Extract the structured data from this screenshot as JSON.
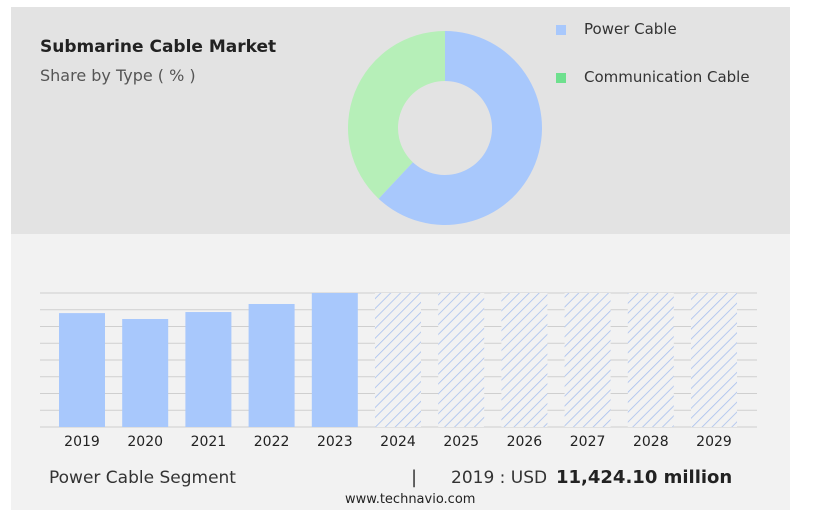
{
  "title": "Submarine Cable Market",
  "subtitle": "Share by Type ( % )",
  "footer": {
    "segment": "Power Cable Segment",
    "separator": "|",
    "year_label": "2019 : USD",
    "value": "11,424.10 million",
    "source": "www.technavio.com"
  },
  "colors": {
    "power": "#a8c8fc",
    "communication": "#b6efb8",
    "communication_legend": "#6ee08e",
    "hatch": "#a8c0ee"
  },
  "chart_data": [
    {
      "type": "pie",
      "title": "Submarine Cable Market",
      "subtitle": "Share by Type ( % )",
      "donut": true,
      "legend_placement": "top-right",
      "slices": [
        {
          "label": "Power Cable",
          "value": 62
        },
        {
          "label": "Communication Cable",
          "value": 38
        }
      ]
    },
    {
      "type": "bar",
      "title": "Power Cable Segment",
      "xlabel": "",
      "ylabel": "",
      "ylim": [
        0,
        100
      ],
      "grid": true,
      "categories": [
        "2019",
        "2020",
        "2021",
        "2022",
        "2023",
        "2024",
        "2025",
        "2026",
        "2027",
        "2028",
        "2029"
      ],
      "values": [
        85,
        80.6,
        85.8,
        91.8,
        100,
        null,
        null,
        null,
        null,
        null,
        null
      ],
      "forecast_categories": [
        "2024",
        "2025",
        "2026",
        "2027",
        "2028",
        "2029"
      ]
    }
  ]
}
